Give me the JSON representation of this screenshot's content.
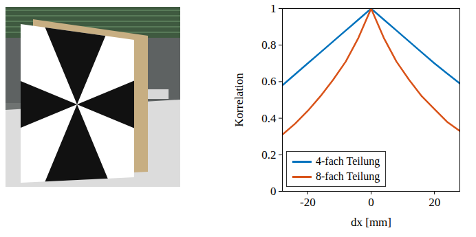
{
  "chart_data": {
    "type": "line",
    "xlabel": "dx [mm]",
    "ylabel": "Korrelation",
    "x": [
      -28,
      -24,
      -20,
      -16,
      -12,
      -8,
      -4,
      0,
      4,
      8,
      12,
      16,
      20,
      24,
      28
    ],
    "series": [
      {
        "name": "4-fach Teilung",
        "color": "#0072bd",
        "values": [
          0.58,
          0.64,
          0.7,
          0.76,
          0.82,
          0.88,
          0.94,
          1.0,
          0.94,
          0.88,
          0.82,
          0.76,
          0.7,
          0.645,
          0.59
        ]
      },
      {
        "name": "8-fach Teilung",
        "color": "#d95319",
        "values": [
          0.31,
          0.37,
          0.44,
          0.52,
          0.61,
          0.71,
          0.84,
          1.0,
          0.84,
          0.71,
          0.61,
          0.52,
          0.45,
          0.38,
          0.33
        ]
      }
    ],
    "xlim": [
      -28,
      28
    ],
    "ylim": [
      0,
      1
    ],
    "xticks": [
      -20,
      0,
      20
    ],
    "yticks": [
      0,
      0.2,
      0.4,
      0.6,
      0.8,
      1
    ],
    "legend": "lower left"
  }
}
